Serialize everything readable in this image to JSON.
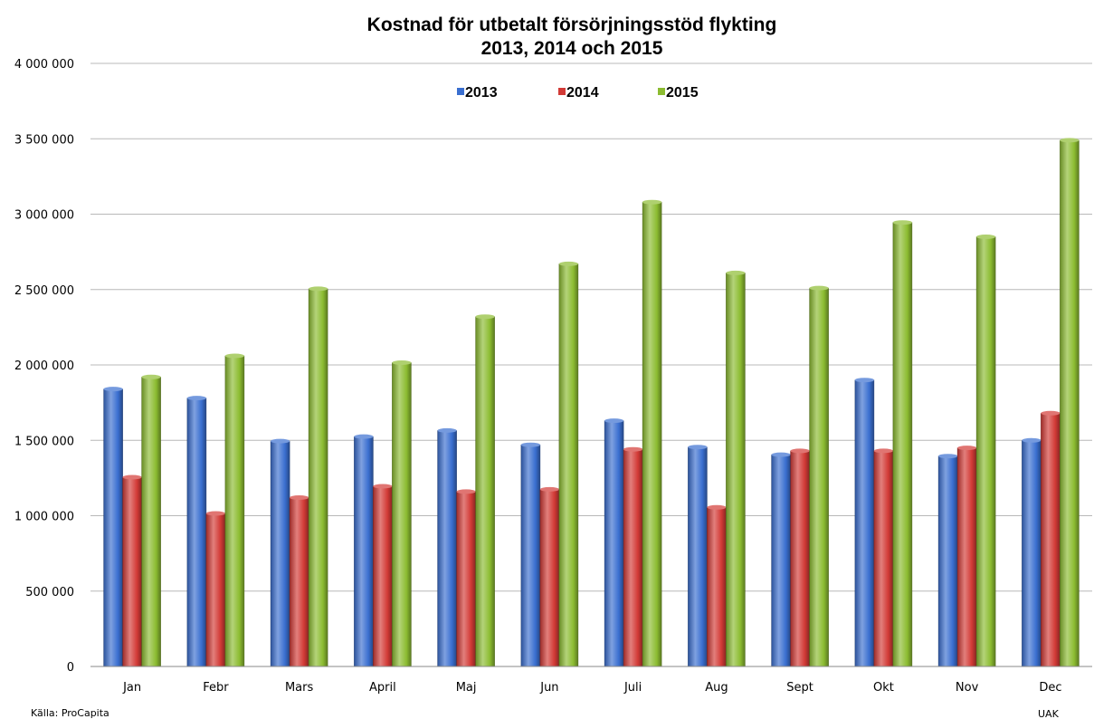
{
  "chart_data": {
    "type": "bar",
    "title": "Kostnad för utbetalt försörjningsstöd flykting",
    "subtitle": "2013, 2014 och 2015",
    "categories": [
      "Jan",
      "Febr",
      "Mars",
      "April",
      "Maj",
      "Jun",
      "Juli",
      "Aug",
      "Sept",
      "Okt",
      "Nov",
      "Dec"
    ],
    "series": [
      {
        "name": "2013",
        "color": "#3a6fd0",
        "values": [
          1840000,
          1780000,
          1495000,
          1525000,
          1565000,
          1470000,
          1630000,
          1455000,
          1405000,
          1900000,
          1395000,
          1500000
        ]
      },
      {
        "name": "2014",
        "color": "#d23a36",
        "values": [
          1255000,
          1015000,
          1120000,
          1195000,
          1160000,
          1175000,
          1440000,
          1055000,
          1430000,
          1430000,
          1450000,
          1680000
        ]
      },
      {
        "name": "2015",
        "color": "#8cbc31",
        "values": [
          1920000,
          2060000,
          2505000,
          2015000,
          2320000,
          2670000,
          3080000,
          2610000,
          2510000,
          2945000,
          2850000,
          3490000
        ]
      }
    ],
    "ylim": [
      0,
      4000000
    ],
    "yticks": [
      0,
      500000,
      1000000,
      1500000,
      2000000,
      2500000,
      3000000,
      3500000,
      4000000
    ],
    "ytick_labels": [
      "0",
      "500 000",
      "1 000 000",
      "1 500 000",
      "2 000 000",
      "2 500 000",
      "3 000 000",
      "3 500 000",
      "4 000 000"
    ],
    "xlabel": "",
    "ylabel": "",
    "grid": true,
    "legend_position": "top-center"
  },
  "source_note": "Källa: ProCapita",
  "author_note": "UAK"
}
